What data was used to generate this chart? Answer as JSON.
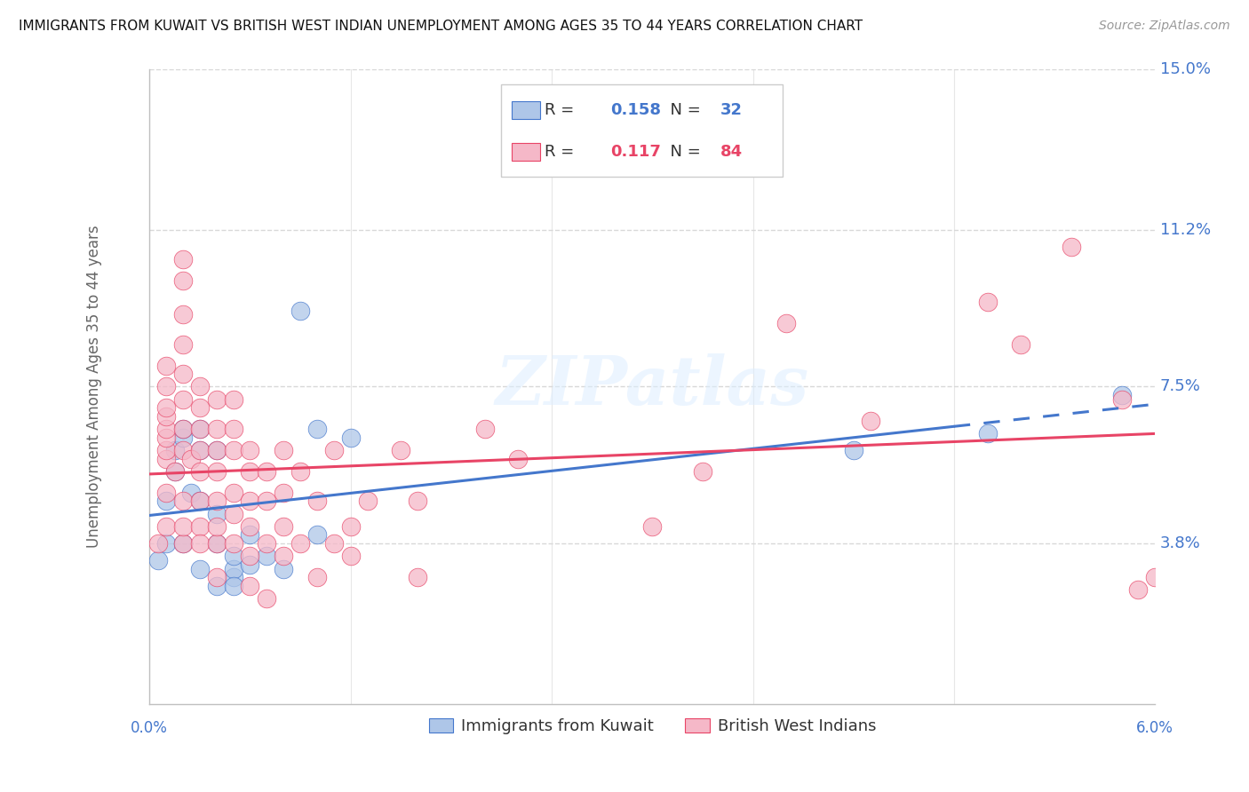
{
  "title": "IMMIGRANTS FROM KUWAIT VS BRITISH WEST INDIAN UNEMPLOYMENT AMONG AGES 35 TO 44 YEARS CORRELATION CHART",
  "source": "Source: ZipAtlas.com",
  "xlabel_blue": "Immigrants from Kuwait",
  "xlabel_pink": "British West Indians",
  "ylabel": "Unemployment Among Ages 35 to 44 years",
  "xmin": 0.0,
  "xmax": 0.06,
  "ymin": 0.0,
  "ymax": 0.15,
  "yticks": [
    0.038,
    0.075,
    0.112,
    0.15
  ],
  "ytick_labels": [
    "3.8%",
    "7.5%",
    "11.2%",
    "15.0%"
  ],
  "xtick_labels": [
    "0.0%",
    "",
    "",
    "",
    "",
    "6.0%"
  ],
  "xticks": [
    0.0,
    0.012,
    0.024,
    0.036,
    0.048,
    0.06
  ],
  "R_blue": "0.158",
  "N_blue": "32",
  "R_pink": "0.117",
  "N_pink": "84",
  "blue_color": "#aec6e8",
  "pink_color": "#f5b8c8",
  "line_blue_color": "#4477cc",
  "line_pink_color": "#e84466",
  "blue_scatter": [
    [
      0.0005,
      0.034
    ],
    [
      0.001,
      0.038
    ],
    [
      0.001,
      0.048
    ],
    [
      0.0015,
      0.055
    ],
    [
      0.0015,
      0.06
    ],
    [
      0.002,
      0.063
    ],
    [
      0.002,
      0.065
    ],
    [
      0.002,
      0.038
    ],
    [
      0.0025,
      0.05
    ],
    [
      0.003,
      0.048
    ],
    [
      0.003,
      0.06
    ],
    [
      0.003,
      0.065
    ],
    [
      0.003,
      0.032
    ],
    [
      0.004,
      0.038
    ],
    [
      0.004,
      0.045
    ],
    [
      0.004,
      0.06
    ],
    [
      0.004,
      0.028
    ],
    [
      0.005,
      0.03
    ],
    [
      0.005,
      0.032
    ],
    [
      0.005,
      0.035
    ],
    [
      0.005,
      0.028
    ],
    [
      0.006,
      0.033
    ],
    [
      0.006,
      0.04
    ],
    [
      0.007,
      0.035
    ],
    [
      0.008,
      0.032
    ],
    [
      0.009,
      0.093
    ],
    [
      0.01,
      0.04
    ],
    [
      0.01,
      0.065
    ],
    [
      0.012,
      0.063
    ],
    [
      0.042,
      0.06
    ],
    [
      0.05,
      0.064
    ],
    [
      0.058,
      0.073
    ]
  ],
  "pink_scatter": [
    [
      0.0005,
      0.038
    ],
    [
      0.001,
      0.042
    ],
    [
      0.001,
      0.05
    ],
    [
      0.001,
      0.058
    ],
    [
      0.001,
      0.06
    ],
    [
      0.001,
      0.063
    ],
    [
      0.001,
      0.065
    ],
    [
      0.001,
      0.068
    ],
    [
      0.001,
      0.07
    ],
    [
      0.001,
      0.075
    ],
    [
      0.001,
      0.08
    ],
    [
      0.0015,
      0.055
    ],
    [
      0.002,
      0.038
    ],
    [
      0.002,
      0.042
    ],
    [
      0.002,
      0.048
    ],
    [
      0.002,
      0.06
    ],
    [
      0.002,
      0.065
    ],
    [
      0.002,
      0.072
    ],
    [
      0.002,
      0.078
    ],
    [
      0.002,
      0.085
    ],
    [
      0.002,
      0.092
    ],
    [
      0.002,
      0.1
    ],
    [
      0.002,
      0.105
    ],
    [
      0.0025,
      0.058
    ],
    [
      0.003,
      0.042
    ],
    [
      0.003,
      0.048
    ],
    [
      0.003,
      0.055
    ],
    [
      0.003,
      0.06
    ],
    [
      0.003,
      0.065
    ],
    [
      0.003,
      0.07
    ],
    [
      0.003,
      0.075
    ],
    [
      0.003,
      0.038
    ],
    [
      0.004,
      0.038
    ],
    [
      0.004,
      0.042
    ],
    [
      0.004,
      0.048
    ],
    [
      0.004,
      0.055
    ],
    [
      0.004,
      0.06
    ],
    [
      0.004,
      0.065
    ],
    [
      0.004,
      0.072
    ],
    [
      0.004,
      0.03
    ],
    [
      0.005,
      0.038
    ],
    [
      0.005,
      0.045
    ],
    [
      0.005,
      0.05
    ],
    [
      0.005,
      0.06
    ],
    [
      0.005,
      0.065
    ],
    [
      0.005,
      0.072
    ],
    [
      0.006,
      0.028
    ],
    [
      0.006,
      0.035
    ],
    [
      0.006,
      0.042
    ],
    [
      0.006,
      0.048
    ],
    [
      0.006,
      0.055
    ],
    [
      0.006,
      0.06
    ],
    [
      0.007,
      0.025
    ],
    [
      0.007,
      0.038
    ],
    [
      0.007,
      0.048
    ],
    [
      0.007,
      0.055
    ],
    [
      0.008,
      0.035
    ],
    [
      0.008,
      0.042
    ],
    [
      0.008,
      0.05
    ],
    [
      0.008,
      0.06
    ],
    [
      0.009,
      0.038
    ],
    [
      0.009,
      0.055
    ],
    [
      0.01,
      0.03
    ],
    [
      0.01,
      0.048
    ],
    [
      0.011,
      0.06
    ],
    [
      0.011,
      0.038
    ],
    [
      0.012,
      0.035
    ],
    [
      0.012,
      0.042
    ],
    [
      0.013,
      0.048
    ],
    [
      0.015,
      0.06
    ],
    [
      0.016,
      0.03
    ],
    [
      0.016,
      0.048
    ],
    [
      0.02,
      0.065
    ],
    [
      0.022,
      0.058
    ],
    [
      0.03,
      0.042
    ],
    [
      0.033,
      0.055
    ],
    [
      0.038,
      0.09
    ],
    [
      0.043,
      0.067
    ],
    [
      0.05,
      0.095
    ],
    [
      0.052,
      0.085
    ],
    [
      0.055,
      0.108
    ],
    [
      0.058,
      0.072
    ],
    [
      0.059,
      0.027
    ],
    [
      0.06,
      0.03
    ]
  ],
  "watermark": "ZIPatlas",
  "bg_color": "#ffffff",
  "grid_color": "#d8d8d8"
}
